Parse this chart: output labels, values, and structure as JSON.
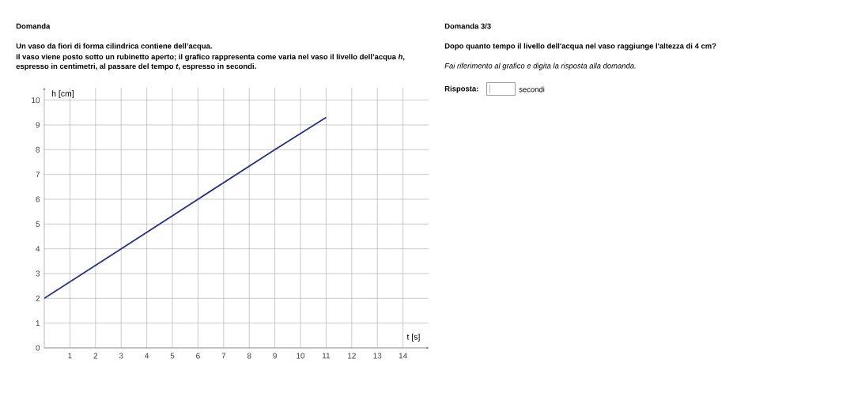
{
  "chart_data": {
    "type": "line",
    "title": "Domanda",
    "subtitle": "Un vaso da fiori di forma cilindrica contiene dell’acqua.",
    "annotations": [
      "Il vaso viene posto sotto un rubinetto aperto; il grafico rappresenta come varia nel vaso il livello dell’acqua *h*, espresso in centimetri, al passare del tempo *t*, espresso in secondi.",
      "Domanda 3/3",
      "Dopo quanto tempo il livello dell'acqua nel vaso raggiunge l'altezza di 4 cm?",
      "Fai riferimento al grafico e digita la risposta alla domanda.",
      "Risposta:",
      "secondi"
    ],
    "xlabel": "t [s]",
    "ylabel": "h [cm]",
    "x": [
      0,
      3,
      6,
      9,
      11
    ],
    "series": [
      {
        "color": "#23308a",
        "values": [
          2,
          4,
          6,
          8,
          9.3
        ]
      }
    ],
    "xlim": [
      0,
      15
    ],
    "ylim": [
      0,
      10.5
    ],
    "xticks": [
      1,
      2,
      3,
      4,
      5,
      6,
      7,
      8,
      9,
      10,
      11,
      12,
      13,
      14
    ],
    "yticks": [
      0,
      1,
      2,
      3,
      4,
      5,
      6,
      7,
      8,
      9,
      10
    ],
    "grid": true,
    "line_style": "solid"
  }
}
